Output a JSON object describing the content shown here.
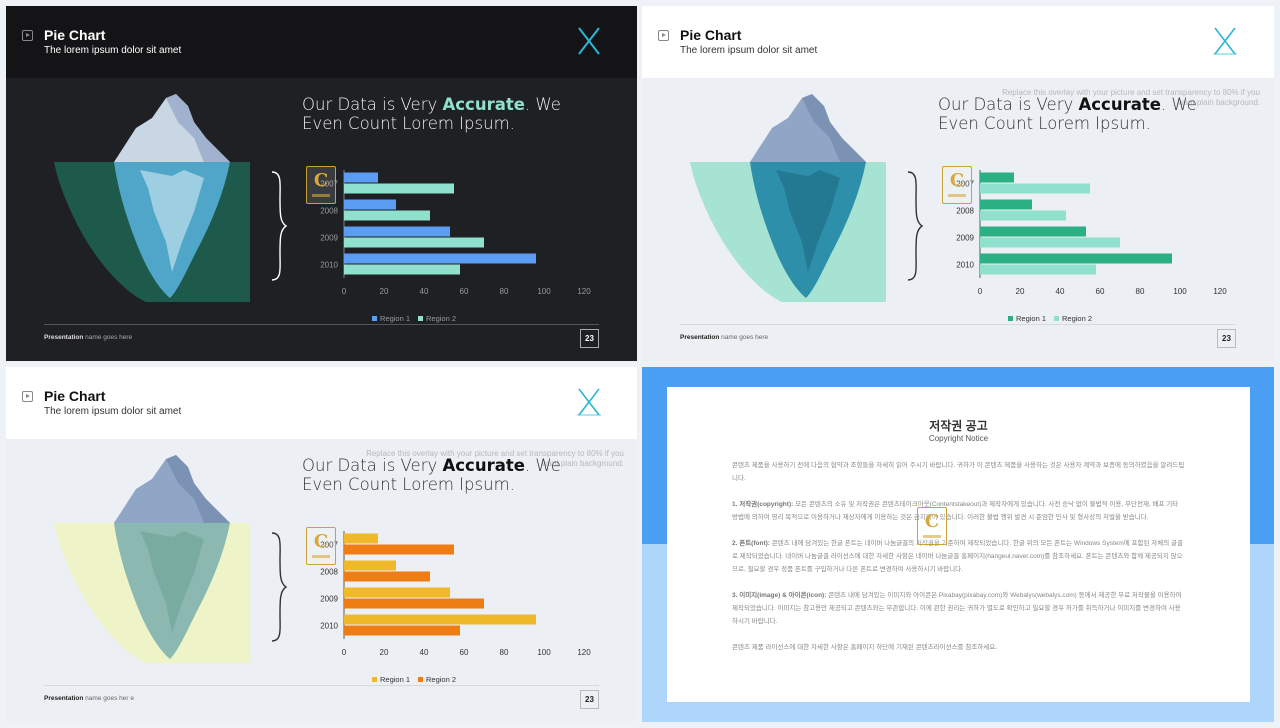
{
  "slides": [
    {
      "theme": "dark",
      "header": {
        "title": "Pie Chart",
        "subtitle": "The lorem ipsum dolor sit amet"
      },
      "headline": {
        "before": "Our Data is Very ",
        "bold": "Accurate",
        "after": ". We Even Count Lorem Ipsum."
      },
      "overlay_note": "",
      "footer": {
        "bold": "Presentation",
        "text": " name goes here",
        "page": "23"
      },
      "colors": {
        "region1": "#5b9df3",
        "region2": "#8fe0cc",
        "water": "#1e5a4c",
        "ice_top": "#c9d6e4",
        "ice_under": "#4fa6c8"
      },
      "chart_data": {
        "type": "bar",
        "orientation": "horizontal",
        "categories": [
          "2007",
          "2008",
          "2009",
          "2010"
        ],
        "series": [
          {
            "name": "Region 1",
            "values": [
              17,
              26,
              53,
              96
            ]
          },
          {
            "name": "Region 2",
            "values": [
              55,
              43,
              70,
              58
            ]
          }
        ],
        "xlim": [
          0,
          120
        ],
        "xticks": [
          "0",
          "20",
          "40",
          "60",
          "80",
          "100",
          "120"
        ],
        "legend": "bottom"
      }
    },
    {
      "theme": "light-green",
      "header": {
        "title": "Pie Chart",
        "subtitle": "The lorem ipsum dolor sit amet"
      },
      "headline": {
        "before": "Our Data is Very ",
        "bold": "Accurate",
        "after": ". We Even Count Lorem Ipsum."
      },
      "overlay_note": "Replace this overlay with your picture and set transparency to 80% if you want plain background.",
      "footer": {
        "bold": "Presentation",
        "text": " name goes here",
        "page": "23"
      },
      "colors": {
        "region1": "#2bb083",
        "region2": "#8fe0cc",
        "water": "#a7e3d3",
        "ice_top": "#90a6c6",
        "ice_under": "#2e8faa"
      },
      "chart_data": {
        "type": "bar",
        "orientation": "horizontal",
        "categories": [
          "2007",
          "2008",
          "2009",
          "2010"
        ],
        "series": [
          {
            "name": "Region 1",
            "values": [
              17,
              26,
              53,
              96
            ]
          },
          {
            "name": "Region 2",
            "values": [
              55,
              43,
              70,
              58
            ]
          }
        ],
        "xlim": [
          0,
          120
        ],
        "xticks": [
          "0",
          "20",
          "40",
          "60",
          "80",
          "100",
          "120"
        ],
        "legend": "bottom"
      }
    },
    {
      "theme": "light-orange",
      "header": {
        "title": "Pie Chart",
        "subtitle": "The lorem ipsum dolor sit amet"
      },
      "headline": {
        "before": "Our Data is Very ",
        "bold": "Accurate",
        "after": ". We Even Count Lorem Ipsum."
      },
      "overlay_note": "Replace this overlay with your picture and set transparency to 80% if you want plain background.",
      "footer": {
        "bold": "Presentation",
        "text": " name goes her e",
        "page": "23"
      },
      "colors": {
        "region1": "#f0b92a",
        "region2": "#ee7d14",
        "water": "#eef3c8",
        "ice_top": "#90a6c6",
        "ice_under": "#8bb8b0"
      },
      "chart_data": {
        "type": "bar",
        "orientation": "horizontal",
        "categories": [
          "2007",
          "2008",
          "2009",
          "2010"
        ],
        "series": [
          {
            "name": "Region 1",
            "values": [
              17,
              26,
              53,
              96
            ]
          },
          {
            "name": "Region 2",
            "values": [
              55,
              43,
              70,
              58
            ]
          }
        ],
        "xlim": [
          0,
          120
        ],
        "xticks": [
          "0",
          "20",
          "40",
          "60",
          "80",
          "100",
          "120"
        ],
        "legend": "bottom"
      }
    }
  ],
  "copyright": {
    "title": "저작권 공고",
    "subtitle": "Copyright Notice",
    "intro": "콘텐츠 제품을 사용하기 전에 다음의 협약과 조항들을 자세히 읽어 주시기 바랍니다. 귀하가 이 콘텐츠 제품을 사용하는 것은 사용자 계약과 보증에 동의하였음을 알려드립니다.",
    "sections": [
      {
        "head": "1. 저작권(copyright):",
        "text": " 모든 콘텐츠의 소유 및 저작권은 콘텐츠테이크아웃(Contentstakeout)과 제작자에게 있습니다. 사전 승낙 없이 불법적 이용, 무단전재, 배포 기타 방법에 의하여 영리 목적으로 이용하거나 재상자에게 이용하는 것은 금지되어 있습니다. 이러한 불법 행위 발견 시 준엄한 민사 및 형사상의 처벌을 받습니다."
      },
      {
        "head": "2. 폰트(font):",
        "text": " 콘텐츠 내에 담겨있는 한글 폰트는 네이버 나눔글꼴의 저작권을 기준하여 제작되었습니다. 한글 위의 모든 폰트는 Windows System에 포함된 자체의 글꼴로 제작되었습니다. 네이버 나눔글꼴 라이선스에 대한 자세한 사항은 네이버 나눔글꼴 홈페이지(hangeul.naver.com)를 참조하세요. 폰트는 콘텐츠와 함께 제공되지 않으므로, 필요할 경우 정품 폰트를 구입하거나 다른 폰트로 변경하여 사용하시기 바랍니다."
      },
      {
        "head": "3. 이미지(image) & 아이콘(icon):",
        "text": " 콘텐츠 내에 담겨있는 이미지와 아이콘은 Pixabay(pixabay.com)와 Webalys(webalys.com) 등에서 제공한 무료 저작물을 이용하여 제작되었습니다. 이미지는 참고용만 제공되고 콘텐츠와는 무관합니다. 이에 관한 권리는 귀하가 별도로 확인하고 필요할 경우 허가를 취득하거나 이미지를 변경하여 사용하시기 바랍니다."
      }
    ],
    "outro": "콘텐츠 제품 라이선스에 대한 자세한 사항은 홈페이지 하단에 기재된 콘텐츠라이선스를 참조하세요."
  }
}
